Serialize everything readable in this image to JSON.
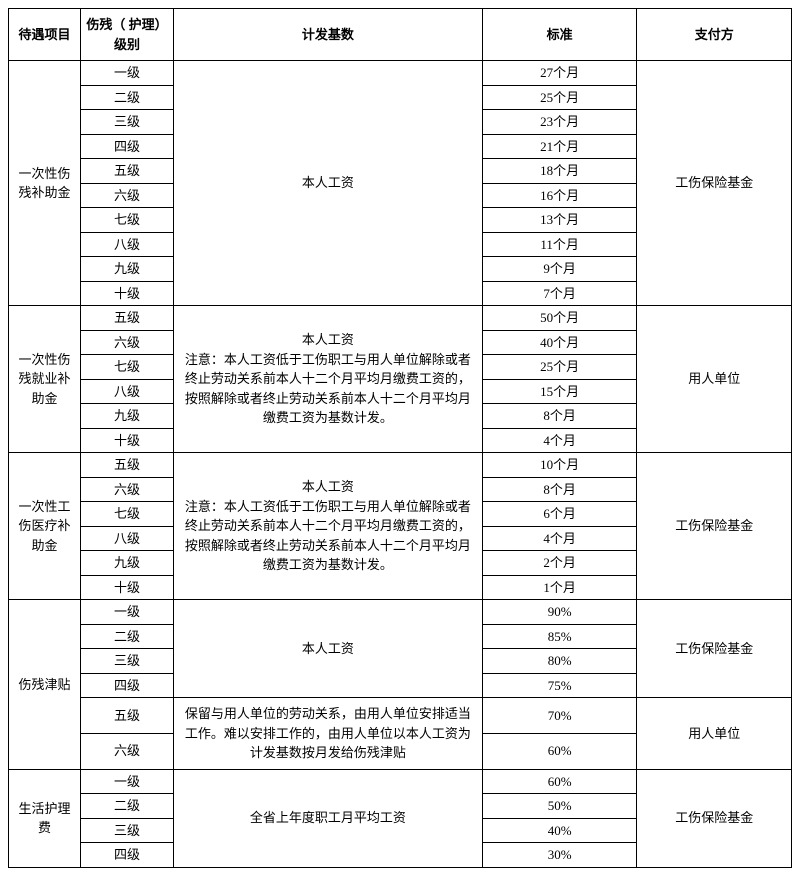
{
  "headers": [
    "待遇项目",
    "伤残（ 护理）级别",
    "计发基数",
    "标准",
    "支付方"
  ],
  "sections": [
    {
      "project": "一次性伤残补助金",
      "basis": "本人工资",
      "payer": "工伤保险基金",
      "rows": [
        {
          "level": "一级",
          "standard": "27个月"
        },
        {
          "level": "二级",
          "standard": "25个月"
        },
        {
          "level": "三级",
          "standard": "23个月"
        },
        {
          "level": "四级",
          "standard": "21个月"
        },
        {
          "level": "五级",
          "standard": "18个月"
        },
        {
          "level": "六级",
          "standard": "16个月"
        },
        {
          "level": "七级",
          "standard": "13个月"
        },
        {
          "level": "八级",
          "standard": "11个月"
        },
        {
          "level": "九级",
          "standard": "9个月"
        },
        {
          "level": "十级",
          "standard": "7个月"
        }
      ]
    },
    {
      "project": "一次性伤残就业补助金",
      "basis": "本人工资\n注意：本人工资低于工伤职工与用人单位解除或者终止劳动关系前本人十二个月平均月缴费工资的，按照解除或者终止劳动关系前本人十二个月平均月缴费工资为基数计发。",
      "payer": "用人单位",
      "rows": [
        {
          "level": "五级",
          "standard": "50个月"
        },
        {
          "level": "六级",
          "standard": "40个月"
        },
        {
          "level": "七级",
          "standard": "25个月"
        },
        {
          "level": "八级",
          "standard": "15个月"
        },
        {
          "level": "九级",
          "standard": "8个月"
        },
        {
          "level": "十级",
          "standard": "4个月"
        }
      ]
    },
    {
      "project": "一次性工伤医疗补助金",
      "basis": "本人工资\n注意：本人工资低于工伤职工与用人单位解除或者终止劳动关系前本人十二个月平均月缴费工资的，按照解除或者终止劳动关系前本人十二个月平均月缴费工资为基数计发。",
      "payer": "工伤保险基金",
      "rows": [
        {
          "level": "五级",
          "standard": "10个月"
        },
        {
          "level": "六级",
          "standard": "8个月"
        },
        {
          "level": "七级",
          "standard": "6个月"
        },
        {
          "level": "八级",
          "standard": "4个月"
        },
        {
          "level": "九级",
          "standard": "2个月"
        },
        {
          "level": "十级",
          "standard": "1个月"
        }
      ]
    },
    {
      "project": "伤残津贴",
      "subsections": [
        {
          "basis": "本人工资",
          "payer": "工伤保险基金",
          "rows": [
            {
              "level": "一级",
              "standard": "90%"
            },
            {
              "level": "二级",
              "standard": "85%"
            },
            {
              "level": "三级",
              "standard": "80%"
            },
            {
              "level": "四级",
              "standard": "75%"
            }
          ]
        },
        {
          "basis": "保留与用人单位的劳动关系，由用人单位安排适当工作。难以安排工作的，由用人单位以本人工资为计发基数按月发给伤残津贴",
          "payer": "用人单位",
          "rows": [
            {
              "level": "五级",
              "standard": "70%"
            },
            {
              "level": "六级",
              "standard": "60%"
            }
          ]
        }
      ]
    },
    {
      "project": "生活护理费",
      "basis": "全省上年度职工月平均工资",
      "payer": "工伤保险基金",
      "rows": [
        {
          "level": "一级",
          "standard": "60%"
        },
        {
          "level": "二级",
          "standard": "50%"
        },
        {
          "level": "三级",
          "standard": "40%"
        },
        {
          "level": "四级",
          "standard": "30%"
        }
      ]
    }
  ]
}
